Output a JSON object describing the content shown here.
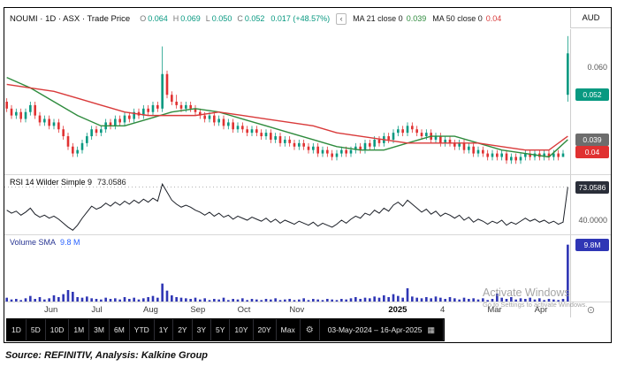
{
  "header": {
    "symbol_line": "NOUMI · 1D · ASX · Trade Price",
    "ohlc": {
      "o_label": "O",
      "o": "0.064",
      "h_label": "H",
      "h": "0.069",
      "l_label": "L",
      "l": "0.050",
      "c_label": "C",
      "c": "0.052",
      "change": "0.017 (+48.57%)"
    },
    "collapse_arrow": "‹",
    "ma21_label": "MA 21 close 0",
    "ma21_value": "0.039",
    "ma50_label": "MA 50 close 0",
    "ma50_value": "0.04",
    "currency": "AUD"
  },
  "axis": {
    "price_tick": "0.060",
    "last_price_badge": "0.052",
    "ma21_badge": "0.039",
    "ma50_badge": "0.04",
    "rsi_badge": "73.0586",
    "rsi_tick": "40.0000",
    "volume_badge": "9.8M"
  },
  "rsi_pane": {
    "title": "RSI 14 Wilder Simple 9",
    "value": "73.0586"
  },
  "volume_pane": {
    "title": "Volume SMA",
    "value": "9.8 M"
  },
  "toolbar": {
    "ranges": [
      "1D",
      "5D",
      "10D",
      "1M",
      "3M",
      "6M",
      "YTD",
      "1Y",
      "2Y",
      "3Y",
      "5Y",
      "10Y",
      "20Y",
      "Max"
    ],
    "date_range": "03-May-2024 – 16-Apr-2025"
  },
  "icons": {
    "gear": "⚙",
    "calendar": "▦",
    "axis_circle": "⊙"
  },
  "watermark": {
    "line1": "Activate Windows",
    "line2": "Go to Settings to activate Windows."
  },
  "source_note": "Source: REFINITIV, Analysis: Kalkine Group",
  "colors": {
    "candle_up": "#089981",
    "candle_down": "#e03131",
    "ma21": "#2e8b3d",
    "ma50": "#d93a3a",
    "rsi_line": "#1b1f27",
    "volume_bar": "#2f36b5",
    "badge_last": "#089981",
    "badge_ma21": "#6d6d6d",
    "badge_ma50": "#e03131",
    "badge_rsi": "#2a2e39",
    "badge_volume": "#2f36b5"
  },
  "chart_data": [
    {
      "type": "candlestick",
      "name": "NOUMI Trade Price",
      "timeframe": "1D",
      "exchange": "ASX",
      "currency": "AUD",
      "price_unit": 0.001,
      "ylim": [
        0.029,
        0.071
      ],
      "last": {
        "open": 0.064,
        "high": 0.069,
        "low": 0.05,
        "close": 0.052,
        "change_abs": 0.017,
        "change_pct": "+48.57%"
      },
      "x_ticks": [
        {
          "i": 10,
          "label": "Jun"
        },
        {
          "i": 20,
          "label": "Jul"
        },
        {
          "i": 31,
          "label": "Aug"
        },
        {
          "i": 41,
          "label": "Sep"
        },
        {
          "i": 51,
          "label": "Oct"
        },
        {
          "i": 62,
          "label": "Nov"
        },
        {
          "i": 83,
          "label": "2025",
          "bold": true
        },
        {
          "i": 94,
          "label": "4"
        },
        {
          "i": 104,
          "label": "Mar"
        },
        {
          "i": 114,
          "label": "Apr"
        }
      ],
      "candles_ohlc_milli": [
        [
          50,
          51,
          47,
          48
        ],
        [
          48,
          49,
          45,
          46
        ],
        [
          46,
          48,
          45,
          47
        ],
        [
          47,
          48,
          44,
          45
        ],
        [
          45,
          48,
          44,
          47
        ],
        [
          47,
          50,
          46,
          49
        ],
        [
          49,
          50,
          45,
          46
        ],
        [
          46,
          47,
          43,
          44
        ],
        [
          44,
          46,
          43,
          45
        ],
        [
          45,
          46,
          42,
          43
        ],
        [
          43,
          45,
          42,
          44
        ],
        [
          44,
          45,
          41,
          42
        ],
        [
          42,
          43,
          39,
          40
        ],
        [
          40,
          41,
          36,
          37
        ],
        [
          37,
          38,
          34,
          35
        ],
        [
          35,
          37,
          34,
          36
        ],
        [
          36,
          39,
          35,
          38
        ],
        [
          38,
          41,
          37,
          40
        ],
        [
          40,
          43,
          39,
          42
        ],
        [
          42,
          43,
          40,
          41
        ],
        [
          41,
          43,
          40,
          42
        ],
        [
          42,
          45,
          41,
          44
        ],
        [
          44,
          45,
          42,
          43
        ],
        [
          43,
          46,
          42,
          45
        ],
        [
          45,
          46,
          43,
          44
        ],
        [
          44,
          47,
          43,
          46
        ],
        [
          46,
          47,
          44,
          45
        ],
        [
          45,
          48,
          44,
          47
        ],
        [
          47,
          48,
          45,
          46
        ],
        [
          46,
          49,
          45,
          48
        ],
        [
          48,
          49,
          46,
          47
        ],
        [
          47,
          50,
          46,
          49
        ],
        [
          49,
          50,
          47,
          48
        ],
        [
          48,
          66,
          47,
          58
        ],
        [
          58,
          59,
          51,
          52
        ],
        [
          52,
          53,
          49,
          50
        ],
        [
          50,
          52,
          48,
          49
        ],
        [
          49,
          50,
          47,
          48
        ],
        [
          48,
          50,
          47,
          49
        ],
        [
          49,
          50,
          47,
          48
        ],
        [
          48,
          49,
          46,
          47
        ],
        [
          47,
          48,
          45,
          46
        ],
        [
          46,
          47,
          44,
          45
        ],
        [
          45,
          47,
          44,
          46
        ],
        [
          46,
          47,
          43,
          44
        ],
        [
          44,
          46,
          43,
          45
        ],
        [
          45,
          46,
          42,
          43
        ],
        [
          43,
          45,
          42,
          44
        ],
        [
          44,
          45,
          41,
          42
        ],
        [
          42,
          44,
          41,
          43
        ],
        [
          43,
          44,
          41,
          42
        ],
        [
          42,
          43,
          40,
          41
        ],
        [
          41,
          43,
          40,
          42
        ],
        [
          42,
          43,
          40,
          41
        ],
        [
          41,
          42,
          39,
          40
        ],
        [
          40,
          42,
          39,
          41
        ],
        [
          41,
          42,
          38,
          39
        ],
        [
          39,
          41,
          38,
          40
        ],
        [
          40,
          41,
          37,
          38
        ],
        [
          38,
          40,
          37,
          39
        ],
        [
          39,
          40,
          37,
          38
        ],
        [
          38,
          39,
          36,
          37
        ],
        [
          37,
          39,
          36,
          38
        ],
        [
          38,
          39,
          36,
          37
        ],
        [
          37,
          38,
          35,
          36
        ],
        [
          36,
          38,
          35,
          37
        ],
        [
          37,
          38,
          34,
          35
        ],
        [
          35,
          37,
          34,
          36
        ],
        [
          36,
          37,
          34,
          35
        ],
        [
          35,
          36,
          33,
          34
        ],
        [
          34,
          36,
          33,
          35
        ],
        [
          35,
          37,
          34,
          36
        ],
        [
          36,
          37,
          34,
          35
        ],
        [
          35,
          37,
          34,
          36
        ],
        [
          36,
          38,
          35,
          37
        ],
        [
          37,
          38,
          35,
          36
        ],
        [
          36,
          39,
          35,
          38
        ],
        [
          38,
          39,
          36,
          37
        ],
        [
          37,
          40,
          36,
          39
        ],
        [
          39,
          40,
          37,
          38
        ],
        [
          38,
          41,
          37,
          40
        ],
        [
          40,
          41,
          38,
          39
        ],
        [
          39,
          42,
          38,
          41
        ],
        [
          41,
          43,
          40,
          42
        ],
        [
          42,
          43,
          40,
          41
        ],
        [
          41,
          44,
          40,
          43
        ],
        [
          43,
          44,
          41,
          42
        ],
        [
          42,
          43,
          40,
          41
        ],
        [
          41,
          42,
          39,
          40
        ],
        [
          40,
          42,
          39,
          41
        ],
        [
          41,
          42,
          38,
          39
        ],
        [
          39,
          41,
          38,
          40
        ],
        [
          40,
          41,
          37,
          38
        ],
        [
          38,
          40,
          37,
          39
        ],
        [
          39,
          40,
          37,
          38
        ],
        [
          38,
          39,
          36,
          37
        ],
        [
          37,
          39,
          36,
          38
        ],
        [
          38,
          39,
          35,
          36
        ],
        [
          36,
          38,
          35,
          37
        ],
        [
          37,
          38,
          34,
          35
        ],
        [
          35,
          37,
          34,
          36
        ],
        [
          36,
          37,
          34,
          35
        ],
        [
          35,
          36,
          33,
          34
        ],
        [
          34,
          36,
          33,
          35
        ],
        [
          35,
          36,
          33,
          34
        ],
        [
          34,
          36,
          33,
          35
        ],
        [
          35,
          36,
          32,
          33
        ],
        [
          33,
          35,
          32,
          34
        ],
        [
          34,
          35,
          32,
          33
        ],
        [
          33,
          35,
          32,
          34
        ],
        [
          34,
          36,
          33,
          35
        ],
        [
          35,
          36,
          33,
          34
        ],
        [
          34,
          36,
          33,
          35
        ],
        [
          35,
          36,
          33,
          34
        ],
        [
          34,
          36,
          33,
          35
        ],
        [
          35,
          36,
          33,
          34
        ],
        [
          34,
          36,
          33,
          35
        ],
        [
          35,
          36,
          33,
          34
        ],
        [
          34,
          36,
          34,
          35
        ],
        [
          64,
          69,
          50,
          52
        ]
      ],
      "series": [
        {
          "name": "MA 21",
          "value": 0.039,
          "color": "#2e8b3d",
          "points_milli": [
            [
              0,
              57
            ],
            [
              5,
              54
            ],
            [
              10,
              50
            ],
            [
              15,
              46
            ],
            [
              20,
              43
            ],
            [
              25,
              43
            ],
            [
              30,
              45
            ],
            [
              35,
              47
            ],
            [
              40,
              48
            ],
            [
              45,
              47
            ],
            [
              50,
              45
            ],
            [
              55,
              43
            ],
            [
              60,
              41
            ],
            [
              65,
              39
            ],
            [
              70,
              37
            ],
            [
              75,
              36
            ],
            [
              80,
              36
            ],
            [
              85,
              38
            ],
            [
              90,
              40
            ],
            [
              95,
              40
            ],
            [
              100,
              38
            ],
            [
              105,
              36
            ],
            [
              110,
              35
            ],
            [
              115,
              34
            ],
            [
              119,
              39
            ]
          ]
        },
        {
          "name": "MA 50",
          "value": 0.04,
          "color": "#d93a3a",
          "points_milli": [
            [
              0,
              55
            ],
            [
              5,
              54
            ],
            [
              10,
              53
            ],
            [
              15,
              51
            ],
            [
              20,
              49
            ],
            [
              25,
              47
            ],
            [
              30,
              46
            ],
            [
              35,
              46
            ],
            [
              40,
              46
            ],
            [
              45,
              47
            ],
            [
              50,
              46
            ],
            [
              55,
              45
            ],
            [
              60,
              44
            ],
            [
              65,
              43
            ],
            [
              70,
              41
            ],
            [
              75,
              40
            ],
            [
              80,
              39
            ],
            [
              85,
              38
            ],
            [
              90,
              38
            ],
            [
              95,
              38
            ],
            [
              100,
              38
            ],
            [
              105,
              37
            ],
            [
              110,
              36
            ],
            [
              115,
              36
            ],
            [
              119,
              40
            ]
          ]
        }
      ]
    },
    {
      "type": "line",
      "name": "RSI 14 Wilder Simple 9",
      "ylim": [
        25,
        85
      ],
      "current": 73.0586,
      "tick_label": 40.0,
      "color": "#1b1f27",
      "values": [
        50,
        47,
        49,
        45,
        48,
        52,
        46,
        43,
        45,
        42,
        44,
        41,
        37,
        33,
        30,
        35,
        42,
        48,
        54,
        51,
        53,
        57,
        54,
        58,
        55,
        59,
        56,
        60,
        57,
        61,
        58,
        62,
        59,
        76,
        68,
        60,
        56,
        53,
        55,
        53,
        50,
        48,
        45,
        48,
        44,
        47,
        43,
        45,
        41,
        44,
        42,
        40,
        43,
        41,
        39,
        42,
        38,
        41,
        37,
        40,
        38,
        36,
        39,
        37,
        35,
        38,
        34,
        37,
        35,
        33,
        36,
        40,
        37,
        41,
        44,
        42,
        47,
        45,
        50,
        47,
        52,
        49,
        55,
        58,
        54,
        60,
        56,
        52,
        48,
        51,
        46,
        49,
        44,
        47,
        45,
        42,
        45,
        40,
        43,
        38,
        41,
        39,
        36,
        39,
        37,
        40,
        35,
        38,
        36,
        39,
        42,
        39,
        41,
        38,
        40,
        37,
        39,
        36,
        38,
        73.06
      ]
    },
    {
      "type": "bar",
      "name": "Volume",
      "unit": "M",
      "sma_label": "Volume SMA",
      "ylim": [
        0,
        10.5
      ],
      "current": 9.8,
      "color": "#2f36b5",
      "values": [
        0.8,
        0.5,
        0.6,
        0.4,
        0.7,
        1.1,
        0.6,
        0.9,
        0.5,
        0.7,
        1.2,
        0.9,
        1.4,
        2.1,
        1.8,
        0.9,
        0.8,
        1.0,
        0.7,
        0.6,
        0.5,
        0.8,
        0.6,
        0.7,
        0.5,
        0.9,
        0.6,
        0.8,
        0.5,
        0.7,
        0.9,
        1.1,
        0.8,
        3.2,
        2.0,
        1.2,
        0.9,
        0.8,
        0.7,
        0.6,
        0.8,
        0.5,
        0.7,
        0.4,
        0.6,
        0.5,
        0.8,
        0.4,
        0.6,
        0.5,
        0.7,
        0.4,
        0.6,
        0.5,
        0.4,
        0.6,
        0.5,
        0.7,
        0.4,
        0.5,
        0.6,
        0.4,
        0.5,
        0.7,
        0.4,
        0.6,
        0.5,
        0.4,
        0.6,
        0.5,
        0.4,
        0.6,
        0.5,
        0.7,
        0.9,
        0.6,
        0.8,
        0.7,
        1.0,
        0.8,
        1.2,
        0.9,
        1.4,
        1.1,
        0.8,
        2.4,
        1.0,
        0.8,
        0.7,
        0.9,
        0.7,
        1.0,
        0.8,
        0.6,
        0.9,
        0.7,
        0.5,
        0.8,
        0.6,
        0.7,
        0.5,
        0.7,
        0.4,
        0.6,
        1.5,
        0.8,
        0.6,
        0.9,
        0.5,
        0.7,
        0.6,
        0.8,
        0.5,
        0.7,
        0.4,
        0.6,
        0.5,
        0.4,
        0.6,
        9.8
      ]
    }
  ]
}
